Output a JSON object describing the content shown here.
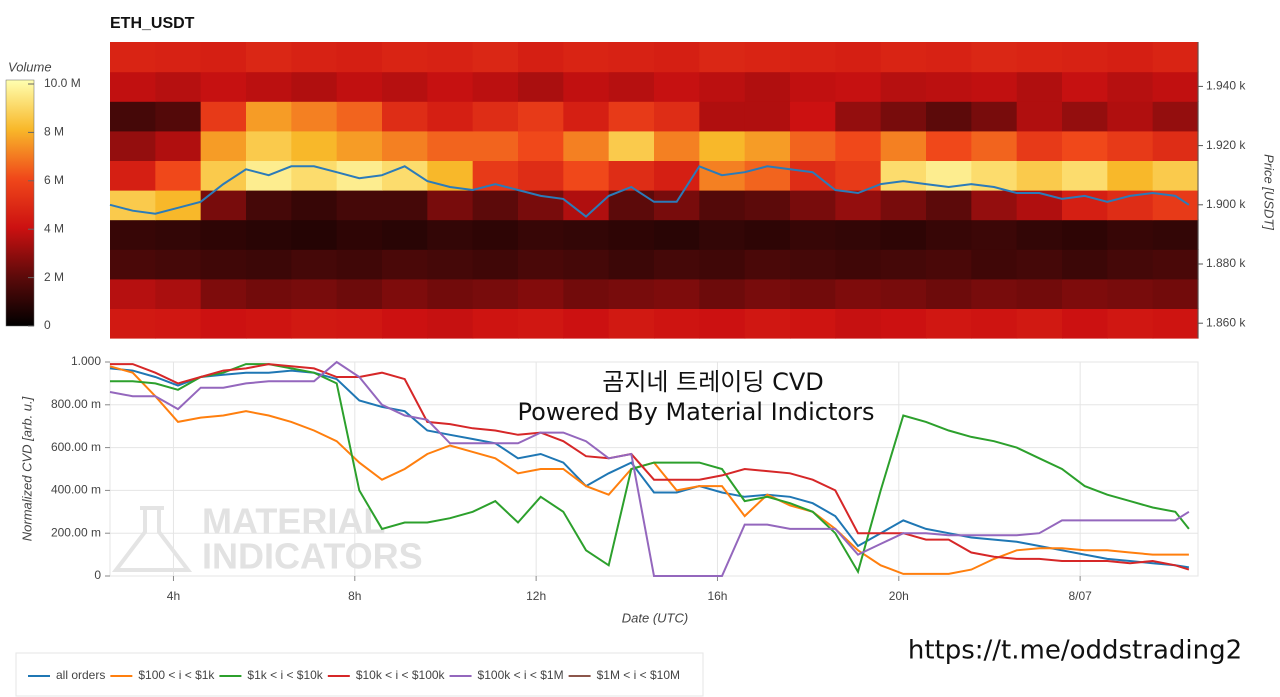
{
  "chart_data": [
    {
      "type": "heatmap",
      "title": "ETH_USDT",
      "y_label": "Price [USDT]",
      "colorbar_label": "Volume",
      "xlim": [
        2.6,
        26.6
      ],
      "ylim": [
        1855,
        1955
      ],
      "x_bins": [
        2.6,
        3.6,
        4.6,
        5.6,
        6.6,
        7.6,
        8.6,
        9.6,
        10.6,
        11.6,
        12.6,
        13.6,
        14.6,
        15.6,
        16.6,
        17.6,
        18.6,
        19.6,
        20.6,
        21.6,
        22.6,
        23.6,
        24.6,
        25.6,
        26.6
      ],
      "y_bins": [
        1855,
        1865,
        1875,
        1885,
        1895,
        1905,
        1915,
        1925,
        1935,
        1945,
        1955
      ],
      "z": [
        [
          4300000,
          4200000,
          4000000,
          4100000,
          4300000,
          4200000,
          4000000,
          3900000,
          4100000,
          4200000,
          4000000,
          4300000,
          4100000,
          4000000,
          4200000,
          4100000,
          3900000,
          4000000,
          4200000,
          4100000,
          4300000,
          4000000,
          4200000,
          4100000
        ],
        [
          3600000,
          3400000,
          2600000,
          2400000,
          2500000,
          2300000,
          2600000,
          2400000,
          2500000,
          2700000,
          2400000,
          2500000,
          2600000,
          2300000,
          2500000,
          2400000,
          2600000,
          2500000,
          2300000,
          2500000,
          2400000,
          2600000,
          2500000,
          2400000
        ],
        [
          1600000,
          1500000,
          1400000,
          1300000,
          1500000,
          1400000,
          1600000,
          1500000,
          1400000,
          1600000,
          1500000,
          1300000,
          1500000,
          1400000,
          1600000,
          1500000,
          1400000,
          1500000,
          1600000,
          1400000,
          1500000,
          1300000,
          1500000,
          1600000
        ],
        [
          1200000,
          1100000,
          1000000,
          900000,
          800000,
          1000000,
          900000,
          1100000,
          1000000,
          1200000,
          1100000,
          1000000,
          900000,
          1100000,
          1000000,
          1200000,
          1100000,
          1000000,
          1200000,
          1300000,
          1100000,
          1000000,
          1200000,
          1100000
        ],
        [
          8500000,
          8000000,
          2500000,
          1500000,
          1200000,
          1500000,
          1500000,
          2500000,
          2000000,
          2500000,
          3500000,
          2000000,
          2500000,
          1800000,
          2000000,
          2500000,
          3000000,
          2500000,
          2000000,
          3000000,
          3500000,
          4500000,
          5000000,
          5500000
        ],
        [
          4500000,
          6000000,
          8500000,
          9500000,
          9000000,
          9500000,
          9000000,
          8000000,
          5500000,
          5000000,
          6000000,
          5000000,
          4500000,
          7000000,
          6500000,
          5000000,
          5500000,
          9000000,
          9500000,
          9000000,
          8500000,
          9000000,
          8000000,
          8500000
        ],
        [
          3000000,
          3500000,
          7500000,
          8500000,
          8000000,
          7500000,
          7000000,
          6500000,
          6500000,
          6000000,
          7000000,
          8500000,
          7000000,
          8000000,
          7500000,
          6500000,
          6000000,
          7000000,
          6000000,
          6500000,
          5500000,
          6000000,
          5500000,
          5000000
        ],
        [
          1500000,
          1800000,
          5500000,
          7500000,
          7000000,
          6500000,
          5000000,
          4500000,
          5000000,
          5500000,
          4500000,
          5500000,
          5000000,
          3500000,
          3500000,
          4000000,
          3000000,
          2500000,
          2000000,
          2500000,
          3500000,
          3000000,
          3500000,
          3000000
        ],
        [
          3800000,
          3600000,
          3900000,
          3700000,
          3500000,
          3800000,
          3600000,
          3900000,
          3700000,
          3400000,
          3800000,
          3600000,
          3900000,
          3700000,
          3500000,
          3800000,
          3900000,
          3600000,
          3700000,
          3800000,
          3500000,
          3900000,
          3600000,
          3800000
        ],
        [
          4700000,
          4600000,
          4500000,
          4800000,
          4600000,
          4500000,
          4700000,
          4600000,
          4800000,
          4500000,
          4700000,
          4600000,
          4500000,
          4800000,
          4700000,
          4600000,
          4500000,
          4700000,
          4600000,
          4800000,
          4700000,
          4600000,
          4500000,
          4700000
        ]
      ],
      "colormap": [
        "#000000",
        "#5c0a0a",
        "#cc1111",
        "#f0481a",
        "#f8b82a",
        "#ffffb0"
      ],
      "clim": [
        0,
        10000000
      ],
      "cticks": [
        0,
        {
          "value": 2000000,
          "label": "2 M"
        },
        {
          "value": 4000000,
          "label": "4 M"
        },
        {
          "value": 6000000,
          "label": "6 M"
        },
        {
          "value": 8000000,
          "label": "8 M"
        },
        {
          "value": 10000000,
          "label": "10.0 M"
        }
      ],
      "yticks": [
        {
          "value": 1860,
          "label": "1.860 k"
        },
        {
          "value": 1880,
          "label": "1.880 k"
        },
        {
          "value": 1900,
          "label": "1.900 k"
        },
        {
          "value": 1920,
          "label": "1.920 k"
        },
        {
          "value": 1940,
          "label": "1.940 k"
        }
      ],
      "line": {
        "color": "#2b7bb9",
        "x": [
          2.6,
          3.1,
          3.6,
          4.1,
          4.6,
          5.1,
          5.6,
          6.1,
          6.6,
          7.1,
          7.6,
          8.1,
          8.6,
          9.1,
          9.6,
          10.1,
          10.6,
          11.1,
          11.6,
          12.1,
          12.6,
          13.1,
          13.6,
          14.1,
          14.6,
          15.1,
          15.6,
          16.1,
          16.6,
          17.1,
          17.6,
          18.1,
          18.6,
          19.1,
          19.6,
          20.1,
          20.6,
          21.1,
          21.6,
          22.1,
          22.6,
          23.1,
          23.6,
          24.1,
          24.6,
          25.1,
          25.6,
          26.1,
          26.4
        ],
        "values": [
          1900,
          1898,
          1897,
          1899,
          1901,
          1907,
          1912,
          1910,
          1913,
          1913,
          1911,
          1909,
          1910,
          1913,
          1908,
          1906,
          1905,
          1907,
          1905,
          1903,
          1902,
          1896,
          1903,
          1906,
          1901,
          1901,
          1913,
          1910,
          1911,
          1913,
          1912,
          1911,
          1905,
          1904,
          1907,
          1908,
          1907,
          1906,
          1907,
          1906,
          1904,
          1904,
          1902,
          1903,
          1901,
          1903,
          1904,
          1903,
          1900
        ]
      }
    },
    {
      "type": "line",
      "x_label": "Date (UTC)",
      "y_label": "Normalized CVD [arb. u.]",
      "annotations": [
        "곰지네 트레이딩 CVD",
        "Powered By Material Indictors"
      ],
      "watermark": [
        "MATERIAL",
        "INDICATORS"
      ],
      "xlim": [
        2.6,
        26.6
      ],
      "ylim": [
        0,
        1
      ],
      "xticks": [
        {
          "value": 4,
          "label": "4h"
        },
        {
          "value": 8,
          "label": "8h"
        },
        {
          "value": 12,
          "label": "12h"
        },
        {
          "value": 16,
          "label": "16h"
        },
        {
          "value": 20,
          "label": "20h"
        },
        {
          "value": 24,
          "label": "8/07"
        }
      ],
      "yticks": [
        0,
        {
          "value": 0.2,
          "label": "200.00 m"
        },
        {
          "value": 0.4,
          "label": "400.00 m"
        },
        {
          "value": 0.6,
          "label": "600.00 m"
        },
        {
          "value": 0.8,
          "label": "800.00 m"
        },
        {
          "value": 1,
          "label": "1.000"
        }
      ],
      "grid": true,
      "legend": "bottom-left",
      "x": [
        2.6,
        3.1,
        3.6,
        4.1,
        4.6,
        5.1,
        5.6,
        6.1,
        6.6,
        7.1,
        7.6,
        8.1,
        8.6,
        9.1,
        9.6,
        10.1,
        10.6,
        11.1,
        11.6,
        12.1,
        12.6,
        13.1,
        13.6,
        14.1,
        14.6,
        15.1,
        15.6,
        16.1,
        16.6,
        17.1,
        17.6,
        18.1,
        18.6,
        19.1,
        19.6,
        20.1,
        20.6,
        21.1,
        21.6,
        22.1,
        22.6,
        23.1,
        23.6,
        24.1,
        24.6,
        25.1,
        25.6,
        26.1,
        26.4
      ],
      "series": [
        {
          "name": "all orders",
          "color": "#1f77b4",
          "values": [
            0.97,
            0.96,
            0.93,
            0.89,
            0.93,
            0.94,
            0.95,
            0.95,
            0.96,
            0.95,
            0.92,
            0.82,
            0.79,
            0.77,
            0.68,
            0.66,
            0.64,
            0.62,
            0.55,
            0.57,
            0.53,
            0.42,
            0.48,
            0.53,
            0.39,
            0.39,
            0.42,
            0.39,
            0.37,
            0.38,
            0.37,
            0.34,
            0.28,
            0.14,
            0.2,
            0.26,
            0.22,
            0.2,
            0.18,
            0.17,
            0.16,
            0.14,
            0.12,
            0.1,
            0.08,
            0.07,
            0.06,
            0.05,
            0.04
          ]
        },
        {
          "name": "$100 < i < $1k",
          "color": "#ff7f0e",
          "values": [
            0.98,
            0.95,
            0.84,
            0.72,
            0.74,
            0.75,
            0.77,
            0.75,
            0.72,
            0.68,
            0.63,
            0.53,
            0.45,
            0.5,
            0.57,
            0.61,
            0.58,
            0.55,
            0.48,
            0.5,
            0.5,
            0.42,
            0.38,
            0.5,
            0.53,
            0.4,
            0.42,
            0.42,
            0.28,
            0.38,
            0.33,
            0.3,
            0.22,
            0.12,
            0.05,
            0.01,
            0.01,
            0.01,
            0.03,
            0.08,
            0.12,
            0.13,
            0.13,
            0.12,
            0.12,
            0.11,
            0.1,
            0.1,
            0.1
          ]
        },
        {
          "name": "$1k < i < $10k",
          "color": "#2ca02c",
          "values": [
            0.91,
            0.91,
            0.9,
            0.87,
            0.93,
            0.95,
            0.99,
            0.99,
            0.97,
            0.95,
            0.9,
            0.4,
            0.22,
            0.25,
            0.25,
            0.27,
            0.3,
            0.35,
            0.25,
            0.37,
            0.3,
            0.12,
            0.05,
            0.5,
            0.53,
            0.53,
            0.53,
            0.5,
            0.35,
            0.37,
            0.34,
            0.3,
            0.2,
            0.02,
            0.4,
            0.75,
            0.72,
            0.68,
            0.65,
            0.63,
            0.6,
            0.55,
            0.5,
            0.42,
            0.38,
            0.35,
            0.32,
            0.3,
            0.22
          ]
        },
        {
          "name": "$10k < i < $100k",
          "color": "#d62728",
          "values": [
            0.99,
            0.99,
            0.95,
            0.9,
            0.93,
            0.96,
            0.97,
            0.99,
            0.98,
            0.97,
            0.93,
            0.93,
            0.95,
            0.92,
            0.72,
            0.71,
            0.69,
            0.68,
            0.66,
            0.67,
            0.63,
            0.56,
            0.55,
            0.57,
            0.45,
            0.45,
            0.45,
            0.47,
            0.5,
            0.49,
            0.48,
            0.45,
            0.4,
            0.2,
            0.2,
            0.2,
            0.17,
            0.17,
            0.11,
            0.09,
            0.08,
            0.08,
            0.07,
            0.07,
            0.07,
            0.06,
            0.07,
            0.05,
            0.03
          ]
        },
        {
          "name": "$100k < i < $1M",
          "color": "#9467bd",
          "values": [
            0.86,
            0.84,
            0.84,
            0.78,
            0.88,
            0.88,
            0.9,
            0.91,
            0.91,
            0.91,
            1.0,
            0.93,
            0.8,
            0.75,
            0.73,
            0.62,
            0.62,
            0.62,
            0.62,
            0.67,
            0.67,
            0.63,
            0.55,
            0.57,
            0.0,
            0.0,
            0.0,
            0.0,
            0.24,
            0.24,
            0.22,
            0.22,
            0.22,
            0.1,
            0.15,
            0.2,
            0.2,
            0.19,
            0.19,
            0.19,
            0.19,
            0.2,
            0.26,
            0.26,
            0.26,
            0.26,
            0.26,
            0.26,
            0.3
          ]
        },
        {
          "name": "$1M < i < $10M",
          "color": "#8c564b",
          "values": [
            null,
            null,
            null,
            null,
            null,
            null,
            null,
            null,
            null,
            null,
            null,
            null,
            null,
            null,
            null,
            null,
            null,
            null,
            null,
            null,
            null,
            null,
            null,
            null,
            null,
            null,
            null,
            null,
            null,
            null,
            null,
            null,
            null,
            null,
            null,
            null,
            null,
            null,
            null,
            null,
            null,
            null,
            null,
            null,
            null,
            null,
            null,
            null,
            null
          ]
        }
      ]
    }
  ],
  "footer": "https://t.me/oddstrading2"
}
